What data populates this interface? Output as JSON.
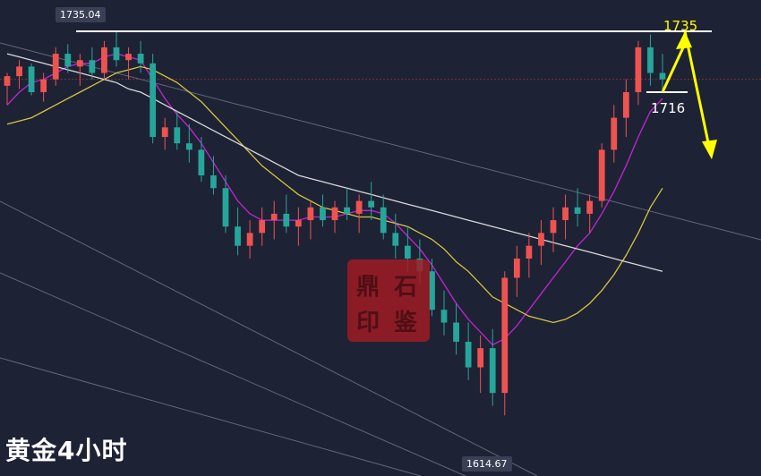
{
  "chart_data": {
    "type": "candlestick",
    "title": "",
    "caption": "黄金4小时",
    "price_labels": {
      "high": "1735.04",
      "low": "1614.67"
    },
    "levels": [
      {
        "value": 1735,
        "label": "1735",
        "color": "#ffffff"
      },
      {
        "value": 1716,
        "label": "1716",
        "color": "#ffffff"
      }
    ],
    "forecast_arrows": {
      "color": "#ffff00",
      "path": [
        1716,
        1735,
        1695
      ]
    },
    "ylim": [
      1605,
      1742
    ],
    "candles": [
      [
        1718,
        1722,
        1712,
        1721
      ],
      [
        1721,
        1726,
        1717,
        1724
      ],
      [
        1724,
        1725,
        1715,
        1716
      ],
      [
        1716,
        1722,
        1713,
        1720
      ],
      [
        1720,
        1730,
        1718,
        1728
      ],
      [
        1728,
        1731,
        1722,
        1724
      ],
      [
        1724,
        1728,
        1718,
        1726
      ],
      [
        1726,
        1730,
        1720,
        1722
      ],
      [
        1722,
        1732,
        1720,
        1730
      ],
      [
        1730,
        1735,
        1724,
        1726
      ],
      [
        1726,
        1730,
        1720,
        1728
      ],
      [
        1728,
        1732,
        1722,
        1725
      ],
      [
        1725,
        1728,
        1700,
        1702
      ],
      [
        1702,
        1708,
        1698,
        1705
      ],
      [
        1705,
        1710,
        1698,
        1700
      ],
      [
        1700,
        1706,
        1694,
        1698
      ],
      [
        1698,
        1702,
        1688,
        1690
      ],
      [
        1690,
        1696,
        1684,
        1686
      ],
      [
        1686,
        1690,
        1672,
        1674
      ],
      [
        1674,
        1680,
        1665,
        1668
      ],
      [
        1668,
        1676,
        1664,
        1672
      ],
      [
        1672,
        1680,
        1668,
        1676
      ],
      [
        1676,
        1682,
        1670,
        1678
      ],
      [
        1678,
        1684,
        1672,
        1674
      ],
      [
        1674,
        1680,
        1668,
        1676
      ],
      [
        1676,
        1682,
        1670,
        1680
      ],
      [
        1680,
        1684,
        1674,
        1676
      ],
      [
        1676,
        1682,
        1672,
        1680
      ],
      [
        1680,
        1686,
        1676,
        1678
      ],
      [
        1678,
        1684,
        1672,
        1682
      ],
      [
        1682,
        1688,
        1676,
        1680
      ],
      [
        1680,
        1684,
        1670,
        1672
      ],
      [
        1672,
        1678,
        1664,
        1668
      ],
      [
        1668,
        1674,
        1660,
        1664
      ],
      [
        1664,
        1670,
        1656,
        1660
      ],
      [
        1660,
        1664,
        1646,
        1648
      ],
      [
        1648,
        1654,
        1640,
        1644
      ],
      [
        1644,
        1650,
        1634,
        1638
      ],
      [
        1638,
        1644,
        1626,
        1630
      ],
      [
        1630,
        1640,
        1622,
        1636
      ],
      [
        1636,
        1642,
        1618,
        1622
      ],
      [
        1622,
        1660,
        1615,
        1658
      ],
      [
        1658,
        1668,
        1652,
        1664
      ],
      [
        1664,
        1672,
        1658,
        1668
      ],
      [
        1668,
        1676,
        1662,
        1672
      ],
      [
        1672,
        1680,
        1666,
        1676
      ],
      [
        1676,
        1684,
        1670,
        1680
      ],
      [
        1680,
        1686,
        1674,
        1678
      ],
      [
        1678,
        1684,
        1672,
        1682
      ],
      [
        1682,
        1700,
        1680,
        1698
      ],
      [
        1698,
        1712,
        1694,
        1708
      ],
      [
        1708,
        1720,
        1702,
        1716
      ],
      [
        1716,
        1732,
        1712,
        1730
      ],
      [
        1730,
        1734,
        1718,
        1722
      ],
      [
        1722,
        1728,
        1716,
        1720
      ]
    ],
    "moving_averages": [
      {
        "color": "#c026d3",
        "values": [
          1712,
          1716,
          1719,
          1720,
          1722,
          1724,
          1725,
          1725,
          1727,
          1728,
          1727,
          1726,
          1720,
          1714,
          1709,
          1705,
          1700,
          1694,
          1688,
          1682,
          1678,
          1676,
          1676,
          1676,
          1676,
          1677,
          1677,
          1677,
          1678,
          1679,
          1679,
          1678,
          1675,
          1671,
          1667,
          1662,
          1656,
          1650,
          1645,
          1641,
          1637,
          1639,
          1643,
          1648,
          1653,
          1658,
          1663,
          1668,
          1672,
          1678,
          1685,
          1693,
          1702,
          1710,
          1714
        ]
      },
      {
        "color": "#d4c640",
        "values": [
          1706,
          1707,
          1708,
          1710,
          1712,
          1714,
          1716,
          1718,
          1720,
          1722,
          1723,
          1724,
          1723,
          1721,
          1719,
          1716,
          1713,
          1709,
          1705,
          1701,
          1697,
          1693,
          1690,
          1687,
          1684,
          1682,
          1680,
          1679,
          1678,
          1677,
          1677,
          1676,
          1675,
          1674,
          1672,
          1670,
          1667,
          1663,
          1660,
          1656,
          1652,
          1650,
          1648,
          1646,
          1645,
          1644,
          1645,
          1647,
          1650,
          1654,
          1659,
          1665,
          1672,
          1680,
          1686
        ]
      },
      {
        "color": "#d8d8d8",
        "values": [
          1728,
          1727,
          1726,
          1725,
          1724,
          1723,
          1722,
          1721,
          1720,
          1719,
          1717,
          1716,
          1714,
          1712,
          1710,
          1708,
          1706,
          1704,
          1702,
          1700,
          1698,
          1696,
          1694,
          1692,
          1690,
          1689,
          1688,
          1687,
          1686,
          1685,
          1684,
          1683,
          1682,
          1681,
          1680,
          1679,
          1678,
          1677,
          1676,
          1675,
          1674,
          1673,
          1672,
          1671,
          1670,
          1669,
          1668,
          1667,
          1666,
          1665,
          1664,
          1663,
          1662,
          1661,
          1660
        ]
      }
    ]
  }
}
